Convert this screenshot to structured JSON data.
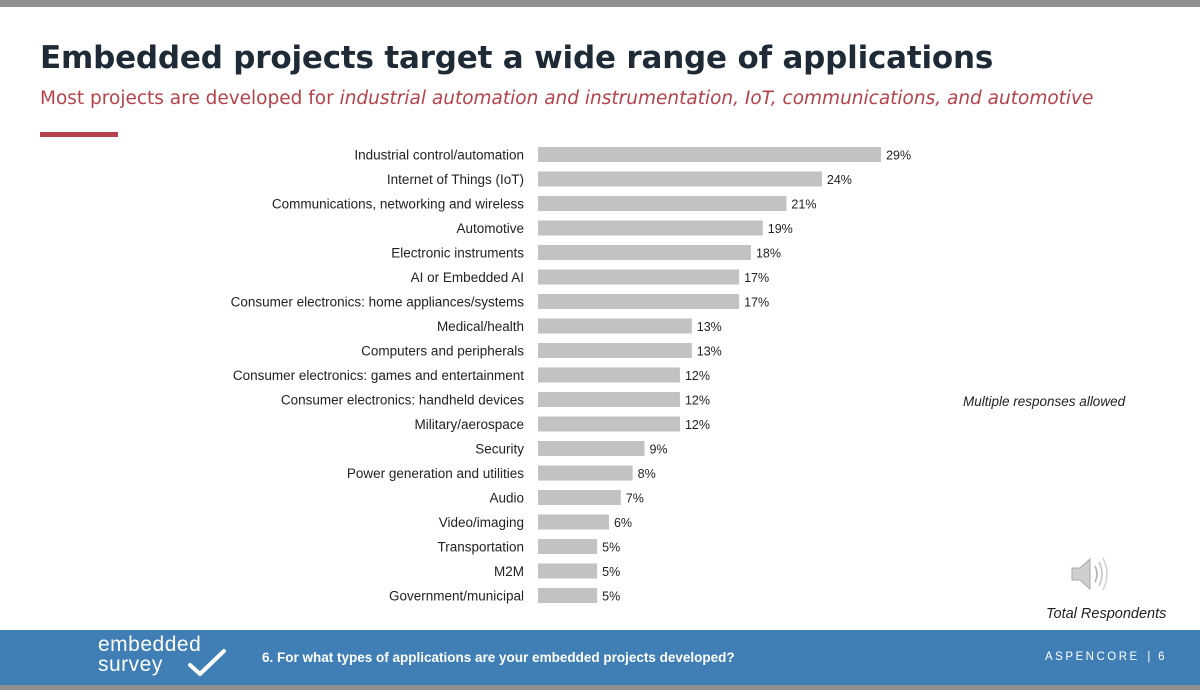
{
  "slide": {
    "title": "Embedded projects target a wide range of applications",
    "subtitle_prefix": "Most projects are developed for ",
    "subtitle_emphasis": "industrial automation and instrumentation, IoT, communications, and automotive",
    "note": "Multiple responses allowed",
    "total_label": "Total Respondents",
    "accent_color": "#b5424a",
    "speaker_icon": "speaker-icon"
  },
  "footer": {
    "logo_line1": "embedded",
    "logo_line2": "survey",
    "logo_icon": "checkmark-icon",
    "question": "6. For what types of applications are your embedded projects developed?",
    "brand": "ASPENCORE",
    "separator": "|",
    "page_number": "6",
    "background_color": "#3f7fb5"
  },
  "chart_data": {
    "type": "bar",
    "orientation": "horizontal",
    "value_suffix": "%",
    "bar_color": "#c2c2c2",
    "xlim": [
      0,
      35
    ],
    "grid": false,
    "categories": [
      "Industrial control/automation",
      "Internet of Things (IoT)",
      "Communications, networking and wireless",
      "Automotive",
      "Electronic instruments",
      "AI or Embedded AI",
      "Consumer electronics: home appliances/systems",
      "Medical/health",
      "Computers and peripherals",
      "Consumer electronics: games and entertainment",
      "Consumer electronics: handheld devices",
      "Military/aerospace",
      "Security",
      "Power generation and utilities",
      "Audio",
      "Video/imaging",
      "Transportation",
      "M2M",
      "Government/municipal"
    ],
    "values": [
      29,
      24,
      21,
      19,
      18,
      17,
      17,
      13,
      13,
      12,
      12,
      12,
      9,
      8,
      7,
      6,
      5,
      5,
      5
    ],
    "data_labels": [
      "29%",
      "24%",
      "21%",
      "19%",
      "18%",
      "17%",
      "17%",
      "13%",
      "13%",
      "12%",
      "12%",
      "12%",
      "9%",
      "8%",
      "7%",
      "6%",
      "5%",
      "5%",
      "5%"
    ]
  }
}
